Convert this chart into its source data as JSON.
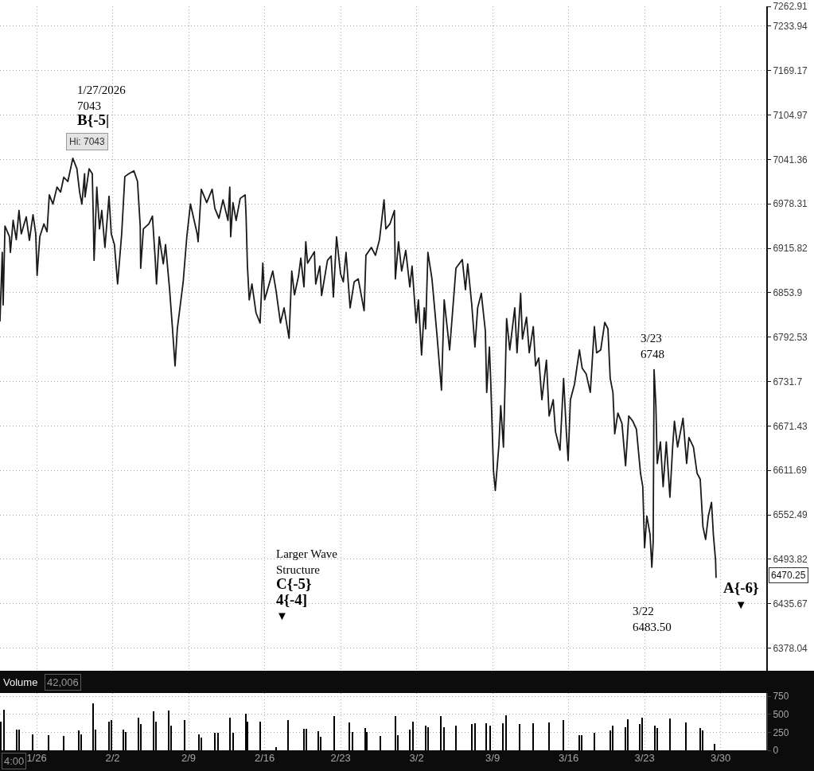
{
  "chart_data": [
    {
      "type": "line",
      "log": "y",
      "grid": true,
      "tick_labels": "y",
      "line_style": "solid",
      "color": "#1a1a1a",
      "xlim": [
        "2026-01-22T15:00",
        "2026-04-03T05:00"
      ],
      "xticks": [
        {
          "value": "2026-01-26",
          "label": null
        },
        {
          "value": "2026-02-02",
          "label": null
        },
        {
          "value": "2026-02-09",
          "label": null
        },
        {
          "value": "2026-02-16",
          "label": null
        },
        {
          "value": "2026-02-23",
          "label": null
        },
        {
          "value": "2026-03-02",
          "label": null
        },
        {
          "value": "2026-03-09",
          "label": null
        },
        {
          "value": "2026-03-16",
          "label": null
        },
        {
          "value": "2026-03-23",
          "label": null
        },
        {
          "value": "2026-03-30",
          "label": null
        }
      ],
      "ylim": [
        6349,
        7262.91
      ],
      "yticks": [
        6378.04,
        6435.67,
        6493.82,
        6552.49,
        6611.69,
        6671.43,
        6731.7,
        6792.53,
        6853.9,
        6915.82,
        6978.31,
        7041.36,
        7104.97,
        7169.17,
        7233.94,
        7262.91
      ],
      "x": [
        "2026-01-22T15:00",
        "2026-01-22T20:00",
        "2026-01-22T22:00",
        "2026-01-23T02:00",
        "2026-01-23T12:00",
        "2026-01-23T14:00",
        "2026-01-23T20:00",
        "2026-01-24T03:00",
        "2026-01-24T09:00",
        "2026-01-24T14:00",
        "2026-01-25T01:00",
        "2026-01-25T08:00",
        "2026-01-25T16:00",
        "2026-01-25T22:00",
        "2026-01-26T01:00",
        "2026-01-26T07:00",
        "2026-01-26T16:00",
        "2026-01-26T23:00",
        "2026-01-27T04:00",
        "2026-01-27T12:00",
        "2026-01-27T21:00",
        "2026-01-28T05:00",
        "2026-01-28T12:00",
        "2026-01-28T21:00",
        "2026-01-29T08:00",
        "2026-01-29T17:00",
        "2026-01-29T23:00",
        "2026-01-30T04:00",
        "2026-01-30T10:00",
        "2026-01-30T11:00",
        "2026-01-30T20:00",
        "2026-01-31T03:00",
        "2026-01-31T05:00",
        "2026-01-31T07:00",
        "2026-01-31T13:00",
        "2026-01-31T19:00",
        "2026-02-01T00:00",
        "2026-02-01T07:00",
        "2026-02-01T16:00",
        "2026-02-01T21:00",
        "2026-02-02T04:00",
        "2026-02-02T11:00",
        "2026-02-02T20:00",
        "2026-02-03T03:00",
        "2026-02-03T12:00",
        "2026-02-03T23:00",
        "2026-02-04T07:00",
        "2026-02-04T13:00",
        "2026-02-04T14:00",
        "2026-02-04T20:00",
        "2026-02-05T08:00",
        "2026-02-05T16:00",
        "2026-02-05T22:00",
        "2026-02-06T01:00",
        "2026-02-06T07:00",
        "2026-02-06T16:00",
        "2026-02-06T21:00",
        "2026-02-07T06:00",
        "2026-02-07T12:00",
        "2026-02-07T18:00",
        "2026-02-07T23:00",
        "2026-02-08T12:00",
        "2026-02-08T20:00",
        "2026-02-09T04:00",
        "2026-02-09T19:00",
        "2026-02-09T21:00",
        "2026-02-10T04:00",
        "2026-02-10T16:00",
        "2026-02-11T04:00",
        "2026-02-11T10:00",
        "2026-02-11T19:00",
        "2026-02-12T04:00",
        "2026-02-12T15:00",
        "2026-02-12T19:00",
        "2026-02-12T21:00",
        "2026-02-13T02:00",
        "2026-02-13T09:00",
        "2026-02-13T18:00",
        "2026-02-14T05:00",
        "2026-02-14T07:00",
        "2026-02-14T10:00",
        "2026-02-14T14:00",
        "2026-02-14T20:00",
        "2026-02-15T05:00",
        "2026-02-15T14:00",
        "2026-02-15T20:00",
        "2026-02-16T00:00",
        "2026-02-16T10:00",
        "2026-02-16T18:00",
        "2026-02-17T01:00",
        "2026-02-17T11:00",
        "2026-02-17T19:00",
        "2026-02-18T06:00",
        "2026-02-18T12:00",
        "2026-02-18T18:00",
        "2026-02-19T03:00",
        "2026-02-19T08:00",
        "2026-02-19T15:00",
        "2026-02-19T19:00",
        "2026-02-19T23:00",
        "2026-02-20T14:00",
        "2026-02-20T17:00",
        "2026-02-21T02:00",
        "2026-02-21T06:00",
        "2026-02-21T19:00",
        "2026-02-22T03:00",
        "2026-02-22T08:00",
        "2026-02-22T15:00",
        "2026-02-23T00:00",
        "2026-02-23T06:00",
        "2026-02-23T12:00",
        "2026-02-23T21:00",
        "2026-02-24T06:00",
        "2026-02-24T15:00",
        "2026-02-25T04:00",
        "2026-02-25T08:00",
        "2026-02-25T20:00",
        "2026-02-26T05:00",
        "2026-02-26T14:00",
        "2026-02-27T00:00",
        "2026-02-27T04:00",
        "2026-02-27T13:00",
        "2026-02-27T23:00",
        "2026-02-28T01:00",
        "2026-02-28T08:00",
        "2026-02-28T15:00",
        "2026-03-01T00:00",
        "2026-03-01T09:00",
        "2026-03-01T14:00",
        "2026-03-01T23:00",
        "2026-03-02T04:00",
        "2026-03-02T11:00",
        "2026-03-02T17:00",
        "2026-03-02T20:00",
        "2026-03-03T01:00",
        "2026-03-03T10:00",
        "2026-03-03T21:00",
        "2026-03-04T07:00",
        "2026-03-04T13:00",
        "2026-03-05T01:00",
        "2026-03-05T15:00",
        "2026-03-06T05:00",
        "2026-03-06T12:00",
        "2026-03-06T17:00",
        "2026-03-07T02:00",
        "2026-03-07T09:00",
        "2026-03-07T15:00",
        "2026-03-07T23:00",
        "2026-03-08T08:00",
        "2026-03-08T11:00",
        "2026-03-08T17:00",
        "2026-03-08T20:00",
        "2026-03-09T02:00",
        "2026-03-09T06:00",
        "2026-03-09T14:00",
        "2026-03-09T18:00",
        "2026-03-10T00:00",
        "2026-03-10T04:00",
        "2026-03-10T07:00",
        "2026-03-10T14:00",
        "2026-03-11T01:00",
        "2026-03-11T06:00",
        "2026-03-11T14:00",
        "2026-03-11T18:00",
        "2026-03-12T03:00",
        "2026-03-12T09:00",
        "2026-03-12T18:00",
        "2026-03-12T23:00",
        "2026-03-13T06:00",
        "2026-03-13T13:00",
        "2026-03-13T23:00",
        "2026-03-14T05:00",
        "2026-03-14T14:00",
        "2026-03-14T19:00",
        "2026-03-15T05:00",
        "2026-03-15T13:00",
        "2026-03-15T19:00",
        "2026-03-15T23:00",
        "2026-03-16T04:00",
        "2026-03-16T13:00",
        "2026-03-17T00:00",
        "2026-03-17T06:00",
        "2026-03-17T15:00",
        "2026-03-18T00:00",
        "2026-03-18T09:00",
        "2026-03-18T14:00",
        "2026-03-18T23:00",
        "2026-03-19T08:00",
        "2026-03-19T15:00",
        "2026-03-19T20:00",
        "2026-03-20T02:00",
        "2026-03-20T06:00",
        "2026-03-20T13:00",
        "2026-03-20T22:00",
        "2026-03-21T06:00",
        "2026-03-21T13:00",
        "2026-03-21T22:00",
        "2026-03-22T06:00",
        "2026-03-22T15:00",
        "2026-03-22T20:00",
        "2026-03-23T00:00",
        "2026-03-23T05:00",
        "2026-03-23T12:00",
        "2026-03-23T16:00",
        "2026-03-23T19:00",
        "2026-03-23T21:00",
        "2026-03-24T01:00",
        "2026-03-24T04:00",
        "2026-03-24T11:00",
        "2026-03-24T17:00",
        "2026-03-25T00:00",
        "2026-03-25T08:00",
        "2026-03-25T14:00",
        "2026-03-25T18:00",
        "2026-03-26T01:00",
        "2026-03-26T13:00",
        "2026-03-26T21:00",
        "2026-03-27T02:00",
        "2026-03-27T12:00",
        "2026-03-27T20:00",
        "2026-03-28T03:00",
        "2026-03-28T09:00",
        "2026-03-28T15:00",
        "2026-03-28T21:00",
        "2026-03-29T04:00",
        "2026-03-29T08:00",
        "2026-03-29T13:00",
        "2026-03-29T14:00"
      ],
      "values": [
        6815,
        6910,
        6837,
        6947,
        6932,
        6910,
        6955,
        6928,
        6969,
        6936,
        6960,
        6927,
        6963,
        6936,
        6878,
        6932,
        6950,
        6939,
        6991,
        6978,
        7002,
        6995,
        7016,
        7010,
        7043,
        7028,
        6995,
        6978,
        7021,
        6988,
        7028,
        7021,
        6966,
        6899,
        7002,
        6943,
        6969,
        6917,
        6989,
        6936,
        6921,
        6866,
        6936,
        7017,
        7021,
        7025,
        7010,
        6947,
        6888,
        6943,
        6950,
        6961,
        6902,
        6866,
        6932,
        6894,
        6921,
        6858,
        6807,
        6753,
        6804,
        6869,
        6932,
        6978,
        6936,
        6925,
        6999,
        6980,
        6999,
        6972,
        6958,
        6984,
        6955,
        7002,
        6932,
        6980,
        6955,
        6986,
        6991,
        6961,
        6891,
        6844,
        6866,
        6826,
        6812,
        6895,
        6844,
        6866,
        6884,
        6858,
        6812,
        6833,
        6791,
        6884,
        6851,
        6877,
        6902,
        6862,
        6925,
        6895,
        6911,
        6866,
        6891,
        6850,
        6899,
        6905,
        6848,
        6932,
        6880,
        6869,
        6910,
        6833,
        6869,
        6873,
        6829,
        6906,
        6917,
        6906,
        6928,
        6984,
        6943,
        6950,
        6969,
        6873,
        6925,
        6884,
        6913,
        6862,
        6891,
        6812,
        6844,
        6768,
        6833,
        6804,
        6910,
        6873,
        6796,
        6720,
        6844,
        6775,
        6888,
        6900,
        6858,
        6894,
        6837,
        6779,
        6833,
        6853,
        6801,
        6717,
        6779,
        6730,
        6611,
        6585,
        6646,
        6699,
        6643,
        6739,
        6818,
        6775,
        6833,
        6771,
        6853,
        6790,
        6820,
        6771,
        6807,
        6753,
        6764,
        6707,
        6761,
        6685,
        6707,
        6664,
        6639,
        6736,
        6664,
        6625,
        6707,
        6728,
        6775,
        6750,
        6742,
        6717,
        6807,
        6771,
        6775,
        6813,
        6804,
        6736,
        6717,
        6661,
        6689,
        6675,
        6618,
        6685,
        6678,
        6667,
        6608,
        6590,
        6509,
        6551,
        6527,
        6483.5,
        6516,
        6748,
        6699,
        6621,
        6650,
        6590,
        6650,
        6576,
        6643,
        6678,
        6643,
        6682,
        6621,
        6656,
        6643,
        6608,
        6600,
        6537,
        6520,
        6551,
        6569,
        6527,
        6492,
        6470.25
      ],
      "annotations": [
        {
          "text": "1/27/2026\n7043\nB{-5|",
          "x": "2026-01-29T08:00",
          "y": 7043
        },
        {
          "text": "Hi: 7043",
          "x": "2026-01-29T08:00",
          "y": 7043
        },
        "Larger Wave\nStructure\nC{-5}\n4{-4]\n▼",
        {
          "text": "3/23\n6748",
          "x": "2026-03-23T21:00",
          "y": 6748
        },
        "3/22\n6483.50",
        "A{-6}\n▼",
        "6470.25"
      ]
    },
    {
      "type": "bar",
      "title": "Volume",
      "grid": true,
      "color": "#000000",
      "xlim": [
        "2026-01-22T15:00",
        "2026-04-03T05:00"
      ],
      "xticks": [
        {
          "value": "2026-01-26",
          "label": "1/26"
        },
        {
          "value": "2026-02-02",
          "label": "2/2"
        },
        {
          "value": "2026-02-09",
          "label": "2/9"
        },
        {
          "value": "2026-02-16",
          "label": "2/16"
        },
        {
          "value": "2026-02-23",
          "label": "2/23"
        },
        {
          "value": "2026-03-02",
          "label": "3/2"
        },
        {
          "value": "2026-03-09",
          "label": "3/9"
        },
        {
          "value": "2026-03-16",
          "label": "3/16"
        },
        {
          "value": "2026-03-23",
          "label": "3/23"
        },
        {
          "value": "2026-03-30",
          "label": "3/30"
        }
      ],
      "ylim": [
        0,
        795
      ],
      "yticks": [
        0,
        250,
        500,
        750
      ],
      "x": [
        "2026-01-22T18:00",
        "2026-01-23T00:00",
        "2026-01-24T04:00",
        "2026-01-24T09:00",
        "2026-01-25T15:00",
        "2026-01-27T02:00",
        "2026-01-28T12:00",
        "2026-01-29T21:00",
        "2026-01-30T03:00",
        "2026-01-31T05:00",
        "2026-01-31T10:00",
        "2026-02-01T16:00",
        "2026-02-01T21:00",
        "2026-02-03T00:00",
        "2026-02-03T05:00",
        "2026-02-04T09:00",
        "2026-02-04T14:00",
        "2026-02-05T19:00",
        "2026-02-06T01:00",
        "2026-02-07T05:00",
        "2026-02-07T09:00",
        "2026-02-08T15:00",
        "2026-02-10T00:00",
        "2026-02-10T05:00",
        "2026-02-11T10:00",
        "2026-02-11T17:00",
        "2026-02-12T20:00",
        "2026-02-13T02:00",
        "2026-02-14T07:00",
        "2026-02-14T11:00",
        "2026-02-15T15:00",
        "2026-02-17T01:00",
        "2026-02-18T05:00",
        "2026-02-19T15:00",
        "2026-02-19T20:00",
        "2026-02-20T23:00",
        "2026-02-21T04:00",
        "2026-02-22T11:00",
        "2026-02-23T20:00",
        "2026-02-24T03:00",
        "2026-02-25T07:00",
        "2026-02-25T11:00",
        "2026-02-26T16:00",
        "2026-02-28T01:00",
        "2026-02-28T07:00",
        "2026-03-01T09:00",
        "2026-03-01T17:00",
        "2026-03-02T20:00",
        "2026-03-03T02:00",
        "2026-03-04T06:00",
        "2026-03-04T13:00",
        "2026-03-05T16:00",
        "2026-03-07T03:00",
        "2026-03-07T09:00",
        "2026-03-08T11:00",
        "2026-03-08T19:00",
        "2026-03-10T00:00",
        "2026-03-10T06:00",
        "2026-03-11T12:00",
        "2026-03-12T18:00",
        "2026-03-14T05:00",
        "2026-03-15T13:00",
        "2026-03-17T00:00",
        "2026-03-17T06:00",
        "2026-03-18T10:00",
        "2026-03-19T20:00",
        "2026-03-20T02:00",
        "2026-03-21T06:00",
        "2026-03-21T12:00",
        "2026-03-22T13:00",
        "2026-03-22T19:00",
        "2026-03-23T23:00",
        "2026-03-24T04:00",
        "2026-03-25T09:00",
        "2026-03-26T19:00",
        "2026-03-28T03:00",
        "2026-03-28T08:00",
        "2026-03-29T11:00"
      ],
      "values": [
        400,
        560,
        290,
        290,
        220,
        210,
        200,
        280,
        220,
        650,
        290,
        400,
        420,
        290,
        250,
        450,
        360,
        540,
        400,
        550,
        340,
        420,
        220,
        180,
        240,
        240,
        450,
        240,
        510,
        400,
        400,
        40,
        420,
        300,
        300,
        270,
        190,
        480,
        390,
        250,
        310,
        250,
        200,
        470,
        210,
        290,
        400,
        340,
        320,
        480,
        320,
        340,
        360,
        380,
        370,
        340,
        380,
        490,
        360,
        380,
        390,
        420,
        210,
        210,
        240,
        280,
        340,
        320,
        430,
        360,
        450,
        340,
        310,
        440,
        390,
        310,
        280,
        90
      ],
      "annotations": [
        "42,006",
        "4:00"
      ]
    }
  ]
}
